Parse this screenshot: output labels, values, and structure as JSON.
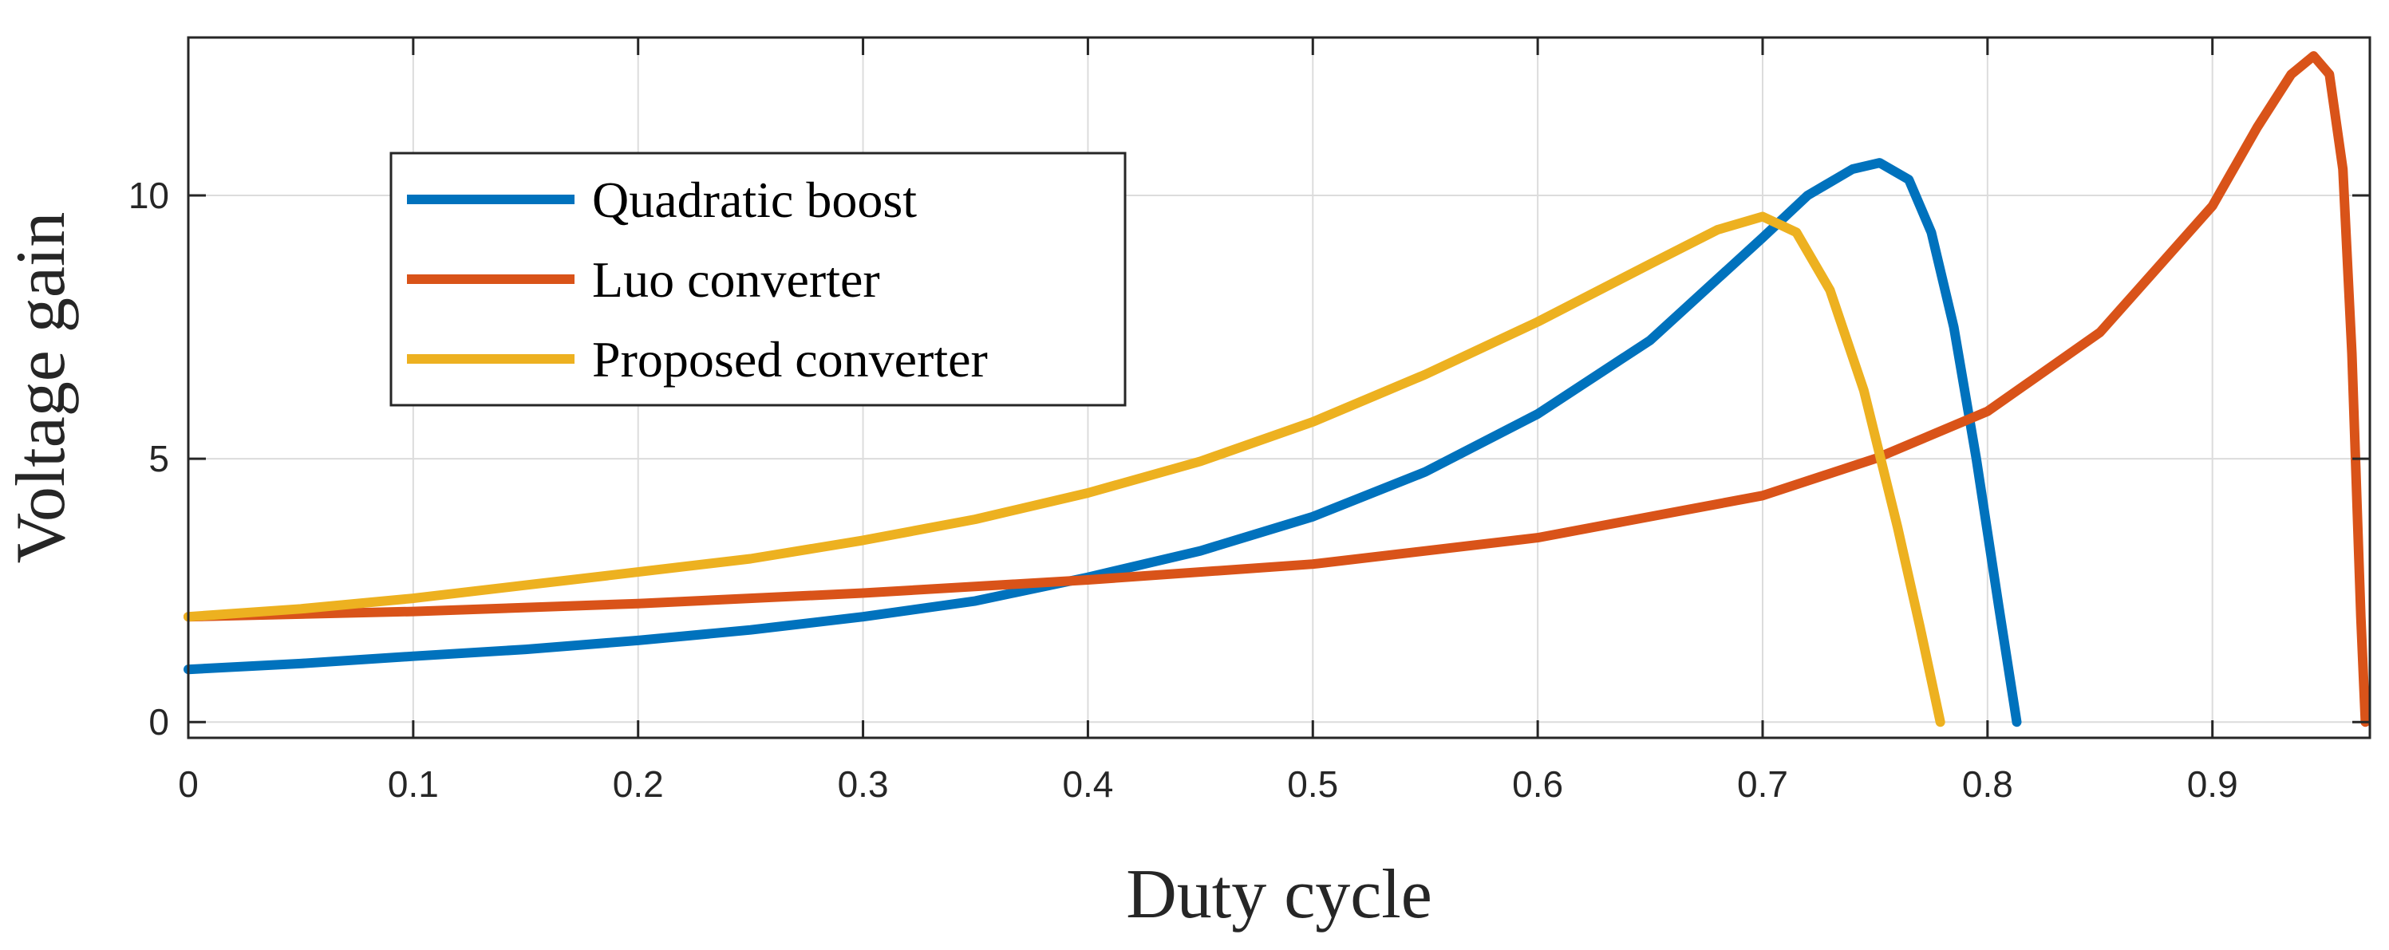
{
  "chart_data": {
    "type": "line",
    "title": "",
    "xlabel": "Duty cycle",
    "ylabel": "Voltage gain",
    "xlim": [
      0,
      0.97
    ],
    "ylim": [
      -0.3,
      13
    ],
    "xticks": [
      0,
      0.1,
      0.2,
      0.3,
      0.4,
      0.5,
      0.6,
      0.7,
      0.8,
      0.9
    ],
    "xtick_labels": [
      "0",
      "0.1",
      "0.2",
      "0.3",
      "0.4",
      "0.5",
      "0.6",
      "0.7",
      "0.8",
      "0.9"
    ],
    "yticks": [
      0,
      5,
      10
    ],
    "ytick_labels": [
      "0",
      "5",
      "10"
    ],
    "grid": true,
    "legend_position": "upper-left",
    "series": [
      {
        "name": "Quadratic boost",
        "color": "#0072BD",
        "x": [
          0,
          0.05,
          0.1,
          0.15,
          0.2,
          0.25,
          0.3,
          0.35,
          0.4,
          0.45,
          0.5,
          0.55,
          0.6,
          0.65,
          0.7,
          0.72,
          0.74,
          0.752,
          0.765,
          0.775,
          0.785,
          0.795,
          0.805,
          0.813
        ],
        "values": [
          1.0,
          1.11,
          1.25,
          1.38,
          1.55,
          1.75,
          2.0,
          2.3,
          2.75,
          3.25,
          3.9,
          4.75,
          5.85,
          7.25,
          9.2,
          10.0,
          10.5,
          10.62,
          10.3,
          9.3,
          7.5,
          5.0,
          2.2,
          0.0
        ]
      },
      {
        "name": "Luo converter",
        "color": "#D95319",
        "x": [
          0,
          0.1,
          0.2,
          0.3,
          0.4,
          0.5,
          0.6,
          0.7,
          0.75,
          0.8,
          0.85,
          0.9,
          0.92,
          0.935,
          0.945,
          0.952,
          0.958,
          0.962,
          0.966,
          0.968
        ],
        "values": [
          2.0,
          2.1,
          2.25,
          2.45,
          2.7,
          3.0,
          3.5,
          4.3,
          5.0,
          5.9,
          7.4,
          9.8,
          11.3,
          12.3,
          12.65,
          12.3,
          10.5,
          7.0,
          2.0,
          0.0
        ]
      },
      {
        "name": "Proposed converter",
        "color": "#EDB120",
        "x": [
          0,
          0.05,
          0.1,
          0.15,
          0.2,
          0.25,
          0.3,
          0.35,
          0.4,
          0.45,
          0.5,
          0.55,
          0.6,
          0.65,
          0.68,
          0.7,
          0.715,
          0.73,
          0.745,
          0.76,
          0.77,
          0.779
        ],
        "values": [
          2.0,
          2.15,
          2.35,
          2.6,
          2.85,
          3.1,
          3.45,
          3.85,
          4.35,
          4.95,
          5.7,
          6.6,
          7.6,
          8.7,
          9.35,
          9.6,
          9.3,
          8.2,
          6.3,
          3.7,
          1.8,
          0.0
        ]
      }
    ]
  }
}
